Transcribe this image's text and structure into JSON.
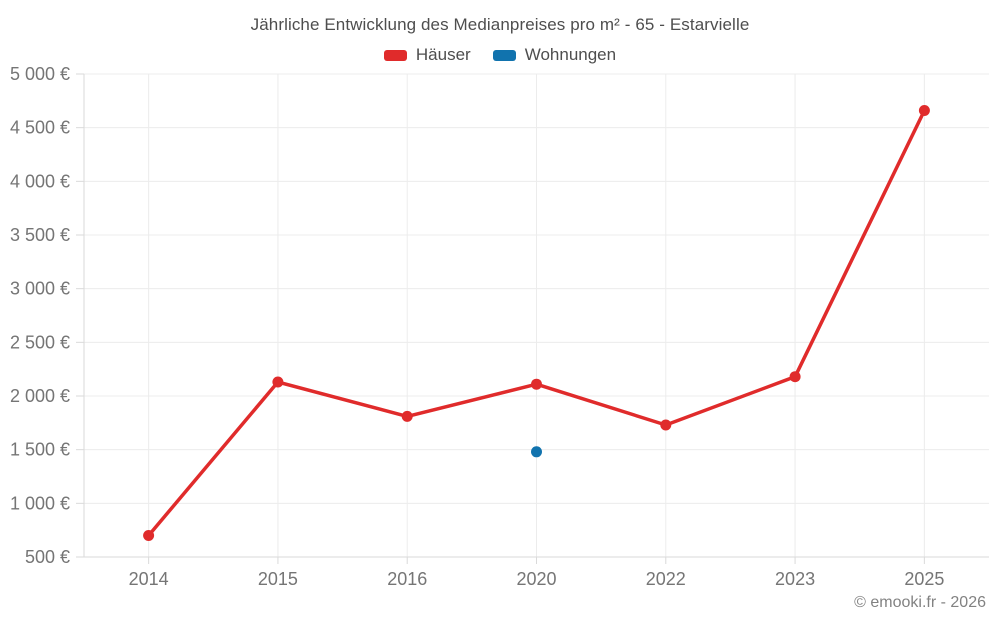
{
  "chart_data": {
    "type": "line",
    "title": "Jährliche Entwicklung des Medianpreises pro m² - 65 - Estarvielle",
    "categories": [
      "2014",
      "2015",
      "2016",
      "2020",
      "2022",
      "2023",
      "2025"
    ],
    "series": [
      {
        "name": "Häuser",
        "color": "#e02b2b",
        "values": [
          700,
          2130,
          1810,
          2110,
          1730,
          2180,
          4660
        ]
      },
      {
        "name": "Wohnungen",
        "color": "#1173ae",
        "values": [
          null,
          null,
          null,
          1480,
          null,
          null,
          null
        ]
      }
    ],
    "ylim": [
      500,
      5000
    ],
    "y_ticks": [
      {
        "value": 5000,
        "label": "5 000 €"
      },
      {
        "value": 4500,
        "label": "4 500 €"
      },
      {
        "value": 4000,
        "label": "4 000 €"
      },
      {
        "value": 3500,
        "label": "3 500 €"
      },
      {
        "value": 3000,
        "label": "3 000 €"
      },
      {
        "value": 2500,
        "label": "2 500 €"
      },
      {
        "value": 2000,
        "label": "2 000 €"
      },
      {
        "value": 1500,
        "label": "1 500 €"
      },
      {
        "value": 1000,
        "label": "1 000 €"
      },
      {
        "value": 500,
        "label": "500 €"
      }
    ],
    "grid": true,
    "legend_position": "top",
    "colors": {
      "grid_line": "#ececec",
      "axis_line": "#dadada",
      "tick_label": "#757575"
    }
  },
  "footer": {
    "copyright": "© emooki.fr - 2026"
  }
}
